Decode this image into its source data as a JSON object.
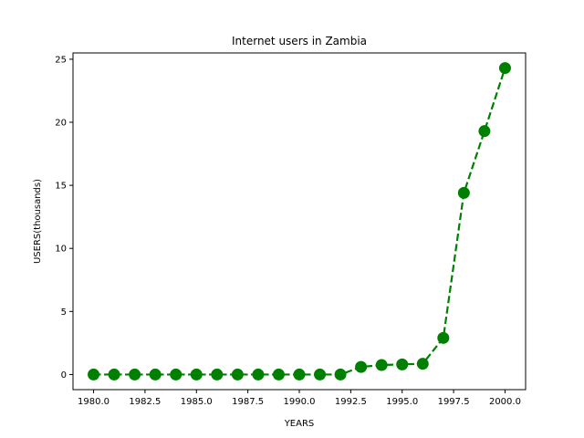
{
  "chart_data": {
    "type": "line",
    "title": "Internet users in Zambia",
    "xlabel": "YEARS",
    "ylabel": "USERS(thousands)",
    "xlim": [
      1979.0,
      2001.0
    ],
    "ylim": [
      -1.2,
      25.5
    ],
    "xticks": [
      1980.0,
      1982.5,
      1985.0,
      1987.5,
      1990.0,
      1992.5,
      1995.0,
      1997.5,
      2000.0
    ],
    "xtick_labels": [
      "1980.0",
      "1982.5",
      "1985.0",
      "1987.5",
      "1990.0",
      "1992.5",
      "1995.0",
      "1997.5",
      "2000.0"
    ],
    "yticks": [
      0,
      5,
      10,
      15,
      20,
      25
    ],
    "ytick_labels": [
      "0",
      "5",
      "10",
      "15",
      "20",
      "25"
    ],
    "grid": false,
    "series": [
      {
        "color": "#008000",
        "line_style": "dashed",
        "marker": "circle",
        "x": [
          1980,
          1981,
          1982,
          1983,
          1984,
          1985,
          1986,
          1987,
          1988,
          1989,
          1990,
          1991,
          1992,
          1993,
          1994,
          1995,
          1996,
          1997,
          1998,
          1999,
          2000
        ],
        "y": [
          0,
          0,
          0,
          0,
          0,
          0,
          0,
          0,
          0,
          0,
          0,
          0,
          0,
          0.6,
          0.75,
          0.8,
          0.85,
          2.9,
          14.4,
          19.3,
          24.3
        ]
      }
    ]
  }
}
